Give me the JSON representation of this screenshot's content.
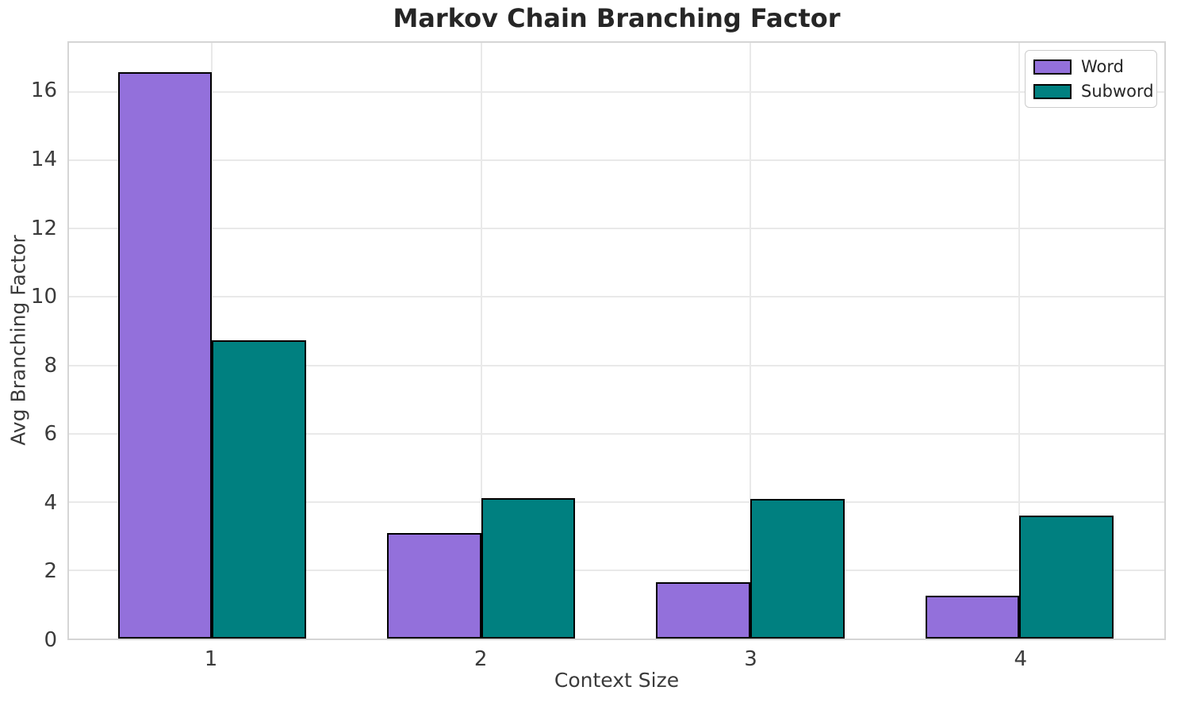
{
  "chart_data": {
    "type": "bar",
    "title": "Markov Chain Branching Factor",
    "xlabel": "Context Size",
    "ylabel": "Avg Branching Factor",
    "categories": [
      "1",
      "2",
      "3",
      "4"
    ],
    "series": [
      {
        "name": "Word",
        "color": "#9370DB",
        "values": [
          16.57,
          3.1,
          1.66,
          1.25
        ]
      },
      {
        "name": "Subword",
        "color": "#008080",
        "values": [
          8.73,
          4.11,
          4.08,
          3.61
        ]
      }
    ],
    "y_ticks": [
      0,
      2,
      4,
      6,
      8,
      10,
      12,
      14,
      16
    ],
    "ylim": [
      0,
      17.44
    ],
    "bar_edge_color": "#000000",
    "grid": true,
    "grid_color": "#e9e9e9",
    "plot_border_color": "#d5d5d5",
    "legend_position": "upper right",
    "legend_entries": [
      "Word",
      "Subword"
    ]
  }
}
